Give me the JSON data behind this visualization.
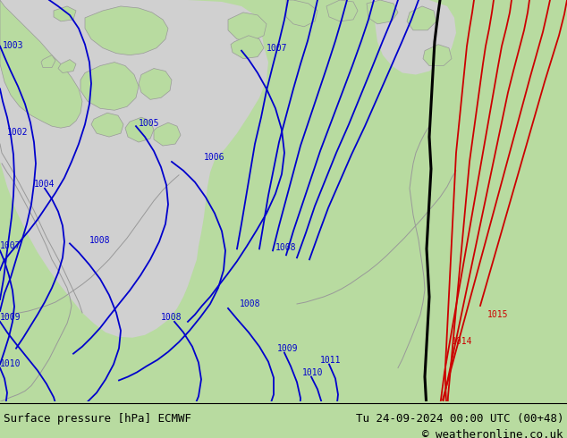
{
  "title_left": "Surface pressure [hPa] ECMWF",
  "title_right": "Tu 24-09-2024 00:00 UTC (00+48)",
  "copyright": "© weatheronline.co.uk",
  "bg_color": "#b8dba0",
  "sea_color": "#d0d0d0",
  "land_color": "#b8dba0",
  "blue": "#0000cc",
  "black": "#000000",
  "red": "#cc0000",
  "grey_coast": "#999999",
  "bottom_bg": "#c8e8a8",
  "bottom_text": "#000000",
  "fig_width": 6.34,
  "fig_height": 4.9,
  "dpi": 100
}
